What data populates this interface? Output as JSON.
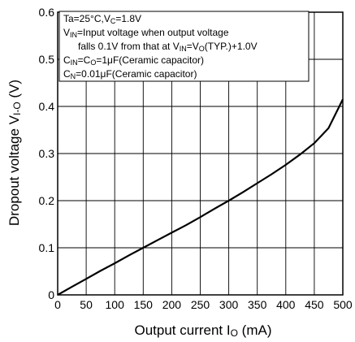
{
  "chart_data": {
    "type": "line",
    "title": "",
    "xlabel_main": "Output current I",
    "xlabel_sub": "O",
    "xlabel_unit": " (mA)",
    "ylabel_main": "Dropout voltage V",
    "ylabel_sub": "I-O",
    "ylabel_unit": " (V)",
    "xlim": [
      0,
      500
    ],
    "ylim": [
      0,
      0.6
    ],
    "x_ticks": [
      0,
      50,
      100,
      150,
      200,
      250,
      300,
      350,
      400,
      450,
      500
    ],
    "y_ticks": [
      0,
      0.1,
      0.2,
      0.3,
      0.4,
      0.5,
      0.6
    ],
    "x_tick_labels": [
      "0",
      "50",
      "100",
      "150",
      "200",
      "250",
      "300",
      "350",
      "400",
      "450",
      "500"
    ],
    "y_tick_labels": [
      "0",
      "0.1",
      "0.2",
      "0.3",
      "0.4",
      "0.5",
      "0.6"
    ],
    "grid": true,
    "series": [
      {
        "x": [
          0,
          25,
          50,
          75,
          100,
          125,
          150,
          175,
          200,
          225,
          250,
          275,
          300,
          325,
          350,
          375,
          400,
          425,
          450,
          475,
          500
        ],
        "y": [
          0,
          0.017,
          0.034,
          0.051,
          0.067,
          0.084,
          0.1,
          0.116,
          0.132,
          0.148,
          0.165,
          0.183,
          0.2,
          0.218,
          0.237,
          0.256,
          0.276,
          0.298,
          0.322,
          0.354,
          0.415
        ]
      }
    ],
    "annotation_lines": [
      "Ta=25°C,Vc=1.8V",
      "V_IN=Input voltage when output voltage",
      "falls 0.1V from that at V_IN=Vo(TYP.)+1.0V",
      "C_IN=Co=1μF(Ceramic capacitor)",
      "C_N=0.01μF(Ceramic capacitor)"
    ]
  }
}
